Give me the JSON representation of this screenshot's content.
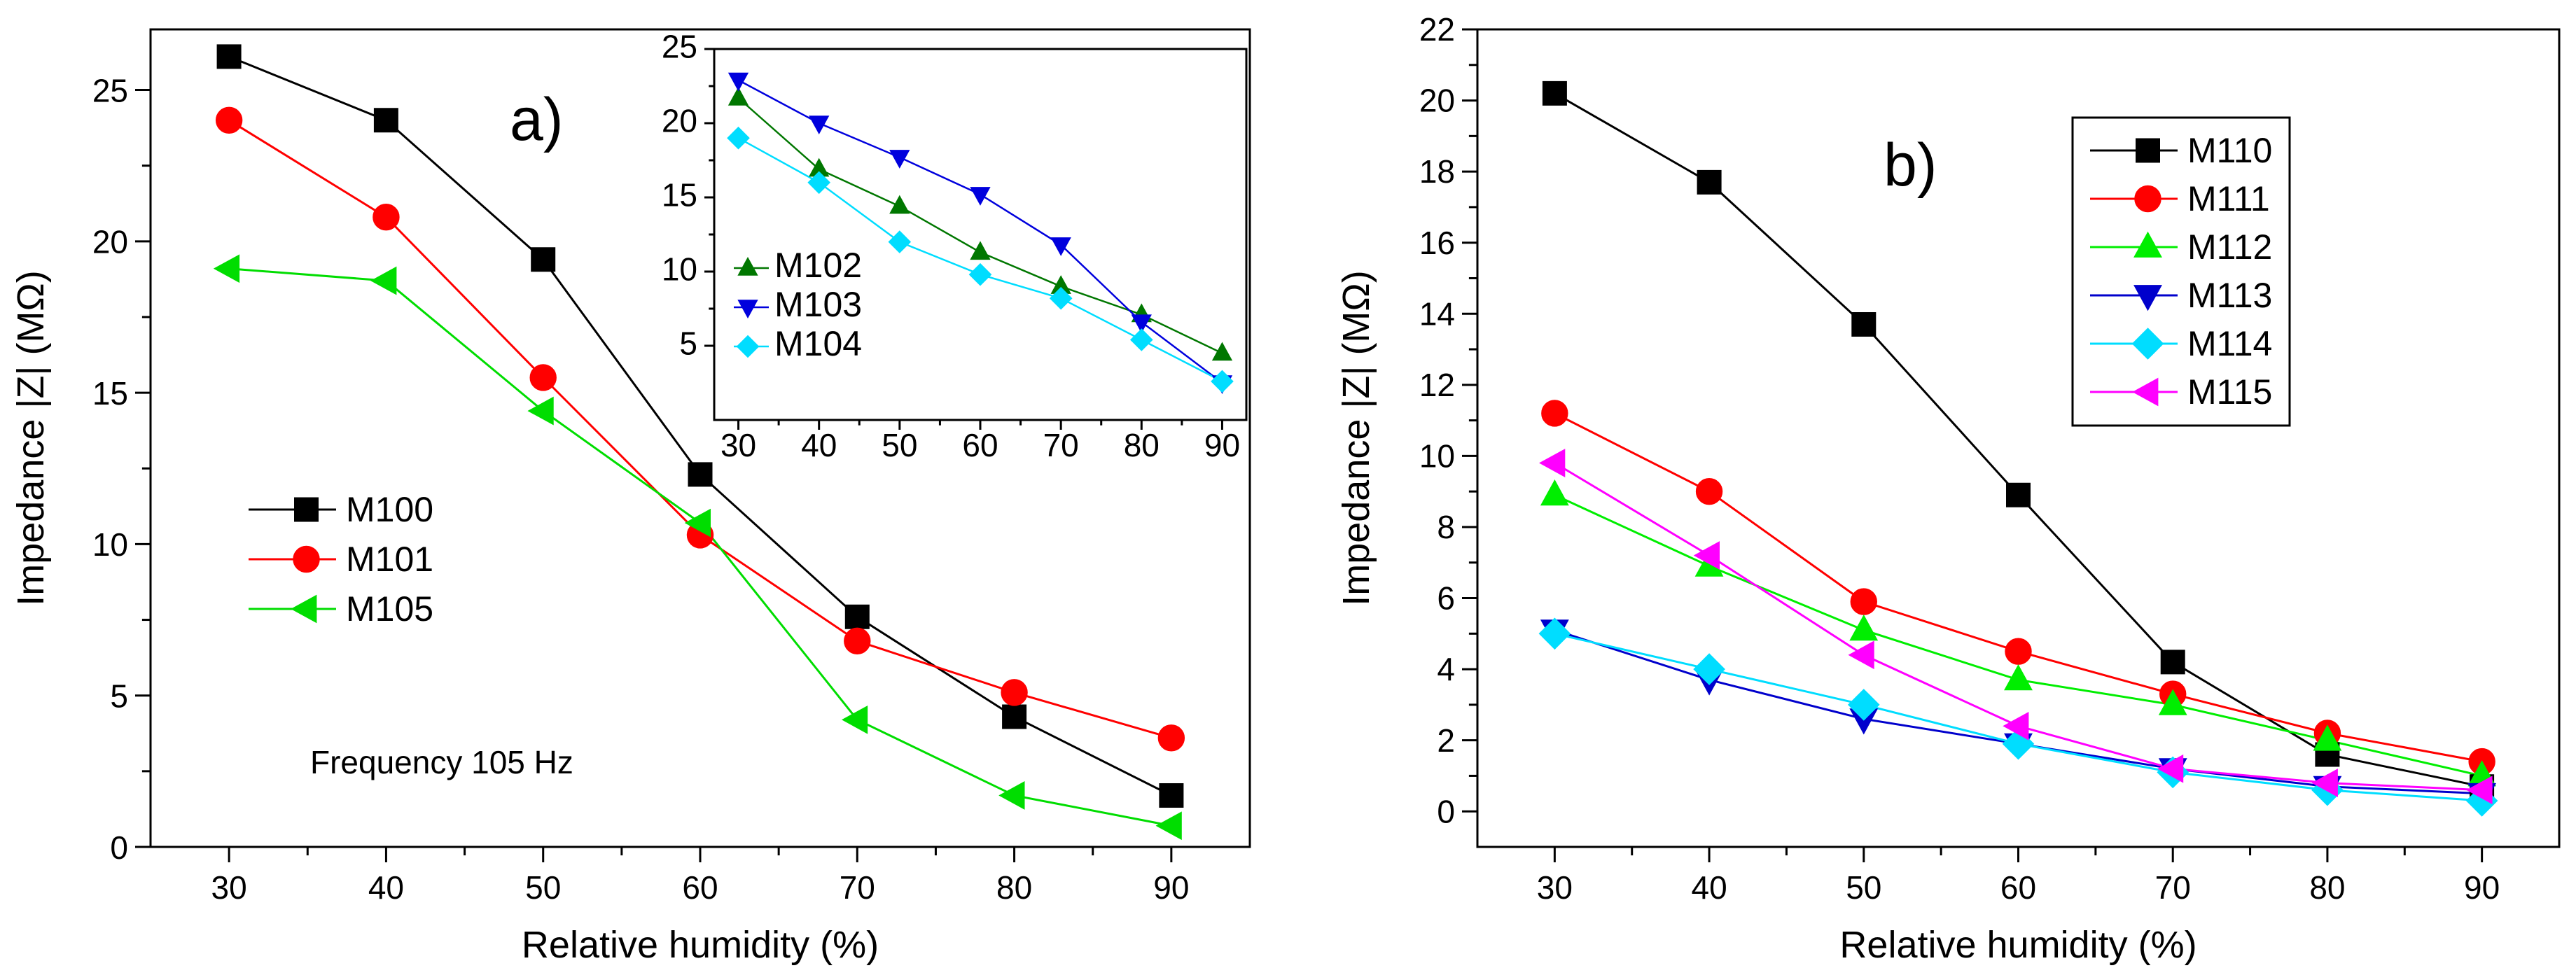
{
  "chart_data": [
    {
      "id": "a",
      "type": "line",
      "panel_label": "a)",
      "xlabel": "Relative humidity (%)",
      "ylabel": "Impedance |Z| (MΩ)",
      "xlim": [
        25,
        95
      ],
      "ylim": [
        0,
        27
      ],
      "xticks": [
        30,
        40,
        50,
        60,
        70,
        80,
        90
      ],
      "yticks": [
        0,
        5,
        10,
        15,
        20,
        25
      ],
      "x": [
        30,
        40,
        50,
        60,
        70,
        80,
        90
      ],
      "annotation": "Frequency 105 Hz",
      "legend_position": "center-left",
      "series": [
        {
          "name": "M100",
          "color": "#000000",
          "marker": "square",
          "values": [
            26.1,
            24.0,
            19.4,
            12.3,
            7.6,
            4.3,
            1.7
          ]
        },
        {
          "name": "M101",
          "color": "#ff0000",
          "marker": "circle",
          "values": [
            24.0,
            20.8,
            15.5,
            10.3,
            6.8,
            5.1,
            3.6
          ]
        },
        {
          "name": "M105",
          "color": "#00dd00",
          "marker": "triangle-left",
          "values": [
            19.1,
            18.7,
            14.4,
            10.7,
            4.2,
            1.7,
            0.7
          ]
        }
      ],
      "inset": {
        "xlim": [
          27,
          93
        ],
        "ylim": [
          0,
          25
        ],
        "xticks": [
          30,
          40,
          50,
          60,
          70,
          80,
          90
        ],
        "yticks": [
          5,
          10,
          15,
          20,
          25
        ],
        "x": [
          30,
          40,
          50,
          60,
          70,
          80,
          90
        ],
        "legend_position": "center-left",
        "series": [
          {
            "name": "M102",
            "color": "#007700",
            "marker": "triangle-up",
            "values": [
              21.7,
              16.9,
              14.4,
              11.3,
              9.0,
              7.1,
              4.5
            ]
          },
          {
            "name": "M103",
            "color": "#0000dd",
            "marker": "triangle-down",
            "values": [
              22.9,
              20.0,
              17.7,
              15.2,
              11.8,
              6.6,
              2.5
            ]
          },
          {
            "name": "M104",
            "color": "#00ddff",
            "marker": "diamond",
            "values": [
              19.0,
              16.0,
              12.0,
              9.8,
              8.2,
              5.4,
              2.6
            ]
          }
        ]
      }
    },
    {
      "id": "b",
      "type": "line",
      "panel_label": "b)",
      "xlabel": "Relative humidity (%)",
      "ylabel": "Impedance |Z| (MΩ)",
      "xlim": [
        25,
        95
      ],
      "ylim": [
        -1,
        22
      ],
      "xticks": [
        30,
        40,
        50,
        60,
        70,
        80,
        90
      ],
      "yticks": [
        0,
        2,
        4,
        6,
        8,
        10,
        12,
        14,
        16,
        18,
        20,
        22
      ],
      "x": [
        30,
        40,
        50,
        60,
        70,
        80,
        90
      ],
      "legend_position": "top-center",
      "series": [
        {
          "name": "M110",
          "color": "#000000",
          "marker": "square",
          "values": [
            20.2,
            17.7,
            13.7,
            8.9,
            4.2,
            1.6,
            0.7
          ]
        },
        {
          "name": "M111",
          "color": "#ff0000",
          "marker": "circle",
          "values": [
            11.2,
            9.0,
            5.9,
            4.5,
            3.3,
            2.2,
            1.4
          ]
        },
        {
          "name": "M112",
          "color": "#00ee00",
          "marker": "triangle-up",
          "values": [
            8.9,
            6.9,
            5.1,
            3.7,
            3.0,
            2.0,
            1.0
          ]
        },
        {
          "name": "M113",
          "color": "#0000cc",
          "marker": "triangle-down",
          "values": [
            5.1,
            3.7,
            2.6,
            1.9,
            1.2,
            0.7,
            0.5
          ]
        },
        {
          "name": "M114",
          "color": "#00ddff",
          "marker": "diamond",
          "values": [
            5.0,
            4.0,
            3.0,
            1.9,
            1.1,
            0.6,
            0.3
          ]
        },
        {
          "name": "M115",
          "color": "#ff00ff",
          "marker": "triangle-left",
          "values": [
            9.8,
            7.2,
            4.4,
            2.4,
            1.2,
            0.8,
            0.6
          ]
        }
      ]
    }
  ]
}
